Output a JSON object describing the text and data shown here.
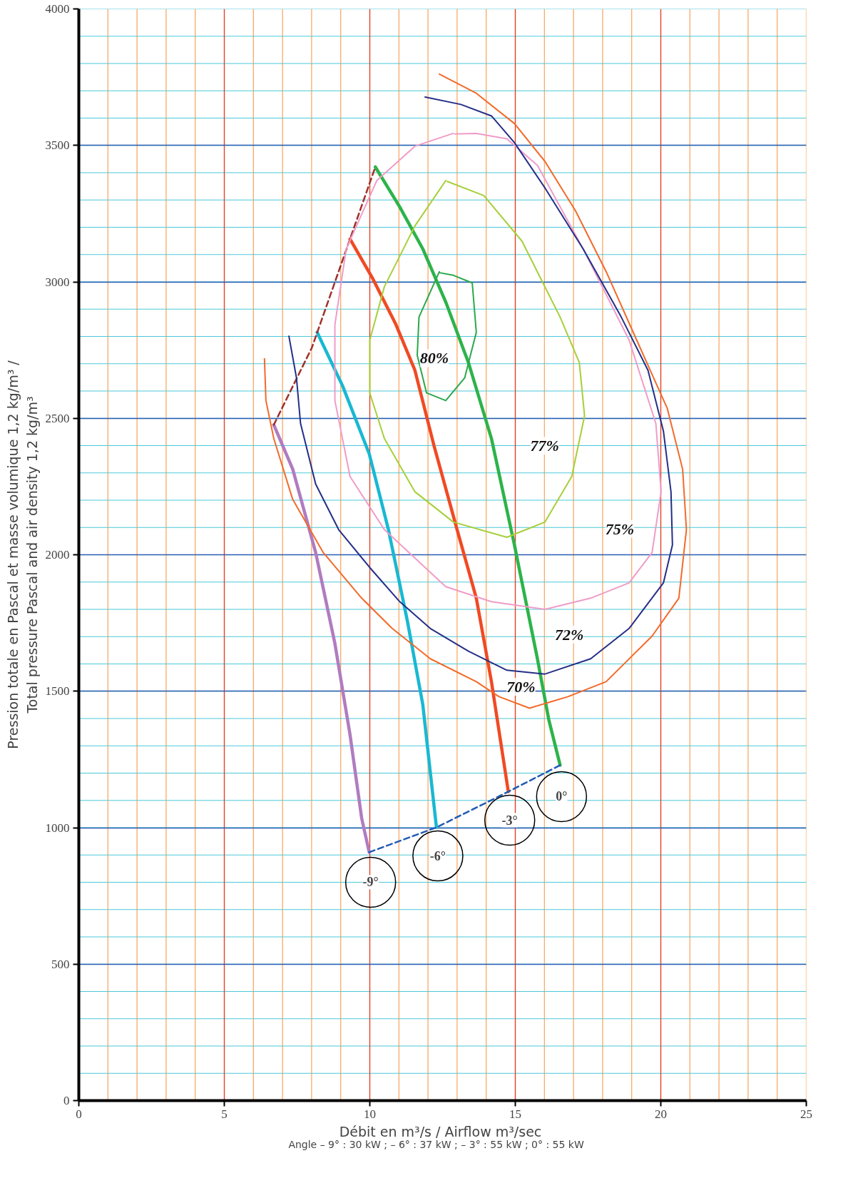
{
  "chart_data": {
    "type": "line",
    "xlabel": "Débit en m³/s  / Airflow m³/sec",
    "ylabel": "Pression totale en Pascal et masse volumique 1,2 kg/m³ /\nTotal pressure Pascal and air density 1,2 kg/m³",
    "xlim": [
      0,
      25
    ],
    "ylim": [
      0,
      4000
    ],
    "xticks": [
      0,
      5,
      10,
      15,
      20,
      25
    ],
    "yticks": [
      0,
      500,
      1000,
      1500,
      2000,
      2500,
      3000,
      3500,
      4000
    ],
    "grid": true,
    "legend": false,
    "marker": "none",
    "series": [
      {
        "name": "-9°",
        "color": "#b07cc0",
        "x": [
          6.7,
          7.35,
          8.14,
          8.8,
          9.32,
          9.72,
          9.98
        ],
        "values": [
          2476,
          2314,
          2008,
          1675,
          1341,
          1035,
          910
        ]
      },
      {
        "name": "-6°",
        "color": "#19b8d2",
        "x": [
          8.19,
          9.06,
          9.98,
          10.64,
          11.29,
          11.82,
          12.08,
          12.29
        ],
        "values": [
          2815,
          2620,
          2370,
          2092,
          1758,
          1452,
          1202,
          1001
        ]
      },
      {
        "name": "-3°",
        "color": "#f04a24",
        "x": [
          9.32,
          10.11,
          10.9,
          11.55,
          12.21,
          13.0,
          13.66,
          14.18,
          14.76
        ],
        "values": [
          3157,
          3010,
          2843,
          2676,
          2398,
          2092,
          1841,
          1535,
          1132
        ]
      },
      {
        "name": "0°",
        "color": "#2db34a",
        "x": [
          10.19,
          11.03,
          11.82,
          12.61,
          13.39,
          14.18,
          14.97,
          15.76,
          16.15,
          16.54
        ],
        "values": [
          3421,
          3274,
          3121,
          2926,
          2704,
          2426,
          2036,
          1619,
          1396,
          1229
        ]
      },
      {
        "color": "#a0302a",
        "line_style": "dashed",
        "x": [
          6.7,
          8.01,
          10.19
        ],
        "values": [
          2476,
          2759,
          3421
        ]
      },
      {
        "color": "#1f5bb5",
        "line_style": "dashed",
        "x": [
          9.98,
          12.29,
          14.76,
          16.54
        ],
        "values": [
          910,
          1001,
          1132,
          1229
        ]
      },
      {
        "name": "80%",
        "color": "#2aa84a",
        "x": [
          12.39,
          11.69,
          11.63,
          11.95,
          12.61,
          13.26,
          13.66,
          13.52,
          12.87,
          12.42
        ],
        "values": [
          3037,
          2871,
          2731,
          2593,
          2565,
          2648,
          2815,
          2996,
          3024,
          3033
        ]
      },
      {
        "name": "77%",
        "color": "#a6cf3a",
        "x": [
          12.61,
          11.55,
          10.5,
          10.0,
          10.0,
          10.5,
          11.55,
          12.87,
          14.71,
          16.02,
          16.94,
          17.38,
          17.2,
          16.54,
          15.23,
          13.92,
          12.66
        ],
        "values": [
          3371,
          3205,
          2982,
          2787,
          2592,
          2426,
          2231,
          2120,
          2064,
          2120,
          2287,
          2509,
          2704,
          2871,
          3149,
          3316,
          3368
        ]
      },
      {
        "name": "75%",
        "color": "#ef9cc8",
        "x": [
          12.87,
          11.55,
          10.24,
          9.19,
          8.8,
          8.8,
          9.32,
          10.5,
          12.61,
          14.18,
          16.02,
          17.59,
          18.91,
          19.7,
          20.01,
          19.83,
          18.91,
          17.33,
          15.76,
          14.71,
          13.66,
          12.92
        ],
        "values": [
          3544,
          3497,
          3371,
          3121,
          2843,
          2565,
          2287,
          2092,
          1883,
          1828,
          1800,
          1841,
          1897,
          2008,
          2231,
          2481,
          2787,
          3121,
          3427,
          3524,
          3544,
          3542
        ]
      },
      {
        "name": "72%",
        "color": "#252f86",
        "x": [
          11.9,
          13.13,
          14.18,
          14.97,
          16.02,
          17.33,
          18.64,
          19.56,
          20.09,
          20.35,
          20.4,
          20.09,
          18.91,
          17.59,
          16.02,
          14.71,
          13.39,
          12.08,
          11.03,
          10.0,
          8.93,
          8.14,
          7.62,
          7.48,
          7.22
        ],
        "values": [
          3677,
          3650,
          3608,
          3510,
          3344,
          3121,
          2871,
          2676,
          2453,
          2231,
          2036,
          1897,
          1730,
          1619,
          1563,
          1577,
          1647,
          1730,
          1828,
          1953,
          2092,
          2259,
          2481,
          2648,
          2801
        ]
      },
      {
        "name": "70%",
        "color": "#f26a2a",
        "x": [
          12.39,
          13.66,
          14.97,
          16.02,
          17.07,
          18.12,
          19.17,
          20.22,
          20.75,
          20.88,
          20.62,
          19.7,
          18.12,
          16.81,
          15.49,
          14.44,
          13.66,
          12.08,
          10.77,
          9.72,
          8.4,
          7.35,
          6.7,
          6.43,
          6.38
        ],
        "values": [
          3761,
          3691,
          3580,
          3441,
          3260,
          3038,
          2787,
          2537,
          2314,
          2092,
          1841,
          1702,
          1535,
          1480,
          1438,
          1480,
          1535,
          1619,
          1730,
          1841,
          2008,
          2203,
          2426,
          2565,
          2718
        ]
      }
    ],
    "annotations": [
      "Angle  –  9° : 30 kW ;  – 6° : 37 kW ;  – 3° : 55 kW ; 0° : 55 kW"
    ]
  }
}
